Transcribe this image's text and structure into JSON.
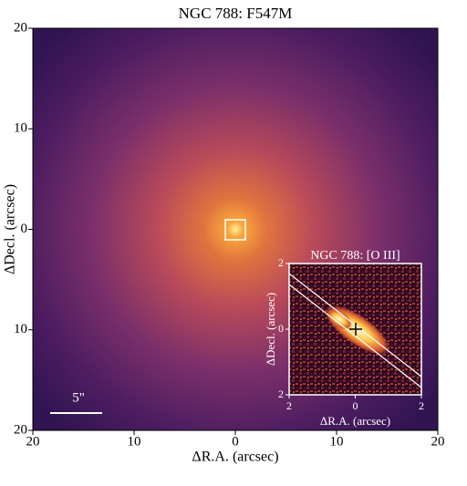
{
  "chart_data": [
    {
      "type": "image",
      "title": "NGC 788: F547M",
      "xlabel": "ΔR.A. (arcsec)",
      "ylabel": "ΔDecl. (arcsec)",
      "xlim": [
        20,
        -20
      ],
      "xticks": [
        20,
        10,
        0,
        {
          "value": -10,
          "label": "10"
        },
        {
          "value": -20,
          "label": "20"
        }
      ],
      "ylim": [
        -20,
        20
      ],
      "yticks": [
        {
          "value": -20,
          "label": "20"
        },
        {
          "value": -10,
          "label": "10"
        },
        0,
        10,
        20
      ],
      "annotation": "5\""
    },
    {
      "type": "image",
      "title": "NGC 788: [O III]",
      "xlabel": "ΔR.A. (arcsec)",
      "ylabel": "ΔDecl. (arcsec)",
      "xlim": [
        2,
        -2
      ],
      "xticks": [
        2,
        0,
        {
          "value": -2,
          "label": "2"
        }
      ],
      "ylim": [
        -2,
        2
      ],
      "yticks": [
        {
          "value": -2,
          "label": "2"
        },
        0,
        2
      ]
    }
  ]
}
